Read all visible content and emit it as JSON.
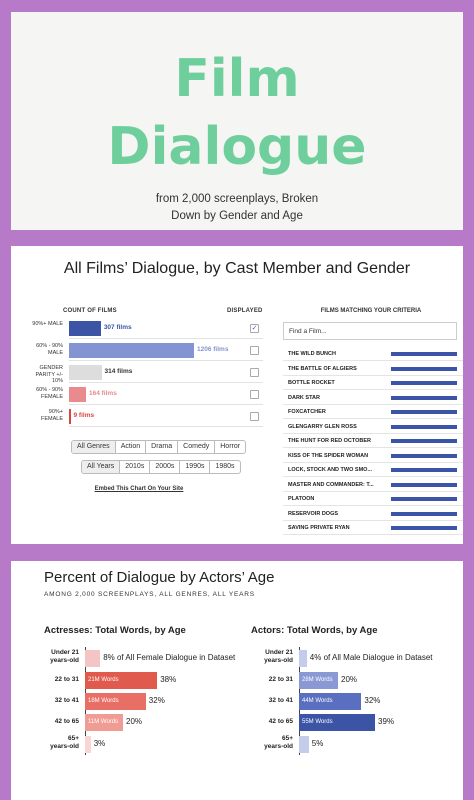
{
  "header": {
    "title_line1": "Film",
    "title_line2": "Dialogue",
    "subtitle_line1": "from 2,000 screenplays, Broken",
    "subtitle_line2": "Down by Gender and Age"
  },
  "section1": {
    "title": "All Films’ Dialogue, by Cast Member and Gender",
    "count_header": "COUNT OF FILMS",
    "displayed_header": "DISPLAYED",
    "matching_header": "FILMS MATCHING YOUR CRITERIA",
    "search_placeholder": "Find a Film...",
    "genre_buttons": [
      "All Genres",
      "Action",
      "Drama",
      "Comedy",
      "Horror"
    ],
    "year_buttons": [
      "All Years",
      "2010s",
      "2000s",
      "1990s",
      "1980s"
    ],
    "embed_link": "Embed This Chart On Your Site",
    "films": [
      "THE WILD BUNCH",
      "THE BATTLE OF ALGIERS",
      "BOTTLE ROCKET",
      "DARK STAR",
      "FOXCATCHER",
      "GLENGARRY GLEN ROSS",
      "THE HUNT FOR RED OCTOBER",
      "KISS OF THE SPIDER WOMAN",
      "LOCK, STOCK AND TWO SMO...",
      "MASTER AND COMMANDER: T...",
      "PLATOON",
      "RESERVOIR DOGS",
      "SAVING PRIVATE RYAN"
    ],
    "colors": {
      "male_dark": "#3b54a6",
      "male_light": "#8494d2",
      "parity": "#dddddd",
      "female_light": "#e88a8e",
      "female_dark": "#d6473e"
    }
  },
  "section2": {
    "title": "Percent of Dialogue by Actors’ Age",
    "subtitle": "AMONG 2,000 SCREENPLAYS, ALL GENRES, ALL YEARS",
    "actresses_title": "Actresses: Total Words, by Age",
    "actors_title": "Actors: Total Words, by Age",
    "first_suffix_female": "of All Female Dialogue in Dataset",
    "first_suffix_male": "of All Male Dialogue in Dataset"
  },
  "chart_data": [
    {
      "type": "bar",
      "title": "All Films’ Dialogue, by Cast Member and Gender",
      "xlabel": "COUNT OF FILMS",
      "categories": [
        "90%+ MALE",
        "60% - 90% MALE",
        "GENDER PARITY +/- 10%",
        "60% - 90% FEMALE",
        "90%+ FEMALE"
      ],
      "values": [
        307,
        1206,
        314,
        164,
        9
      ],
      "value_labels": [
        "307 films",
        "1206 films",
        "314 films",
        "164 films",
        "9 films"
      ],
      "displayed": [
        true,
        false,
        false,
        false,
        false
      ],
      "colors": [
        "#3b54a6",
        "#8494d2",
        "#dddddd",
        "#e88a8e",
        "#d6473e"
      ]
    },
    {
      "type": "bar",
      "title": "Actresses: Total Words, by Age",
      "categories": [
        "Under 21 years-old",
        "22 to 31",
        "32 to 41",
        "42 to 65",
        "65+ years-old"
      ],
      "values": [
        8,
        38,
        32,
        20,
        3
      ],
      "pct_labels": [
        "8%",
        "38%",
        "32%",
        "20%",
        "3%"
      ],
      "words": [
        "",
        "21M Words",
        "18M Words",
        "11M Words",
        ""
      ],
      "colors": [
        "#f3c5c5",
        "#e05a4e",
        "#e86f65",
        "#f09b94",
        "#f7d6d4"
      ]
    },
    {
      "type": "bar",
      "title": "Actors: Total Words, by Age",
      "categories": [
        "Under 21 years-old",
        "22 to 31",
        "32 to 41",
        "42 to 65",
        "65+ years-old"
      ],
      "values": [
        4,
        20,
        32,
        39,
        5
      ],
      "pct_labels": [
        "4%",
        "20%",
        "32%",
        "39%",
        "5%"
      ],
      "words": [
        "",
        "28M Words",
        "44M Words",
        "55M Words",
        ""
      ],
      "colors": [
        "#c5cbea",
        "#8a98d4",
        "#5a6fbf",
        "#3b54a6",
        "#c5cbea"
      ]
    }
  ]
}
